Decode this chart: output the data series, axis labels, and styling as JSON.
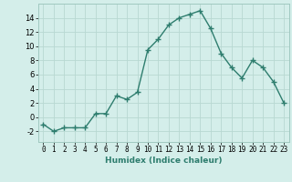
{
  "x": [
    0,
    1,
    2,
    3,
    4,
    5,
    6,
    7,
    8,
    9,
    10,
    11,
    12,
    13,
    14,
    15,
    16,
    17,
    18,
    19,
    20,
    21,
    22,
    23
  ],
  "y": [
    -1,
    -2,
    -1.5,
    -1.5,
    -1.5,
    0.5,
    0.5,
    3,
    2.5,
    3.5,
    9.5,
    11,
    13,
    14,
    14.5,
    15,
    12.5,
    9,
    7,
    5.5,
    8,
    7,
    5,
    2
  ],
  "line_color": "#2e7d6e",
  "marker": "+",
  "marker_size": 4,
  "marker_edge_width": 1.0,
  "xlabel": "Humidex (Indice chaleur)",
  "xlim": [
    -0.5,
    23.5
  ],
  "ylim": [
    -3.5,
    16
  ],
  "yticks": [
    -2,
    0,
    2,
    4,
    6,
    8,
    10,
    12,
    14
  ],
  "xticks": [
    0,
    1,
    2,
    3,
    4,
    5,
    6,
    7,
    8,
    9,
    10,
    11,
    12,
    13,
    14,
    15,
    16,
    17,
    18,
    19,
    20,
    21,
    22,
    23
  ],
  "bg_color": "#d4eeea",
  "grid_color": "#b8d8d2",
  "line_width": 1.0,
  "xlabel_fontsize": 6.5,
  "tick_fontsize": 5.5,
  "ytick_fontsize": 6.0
}
